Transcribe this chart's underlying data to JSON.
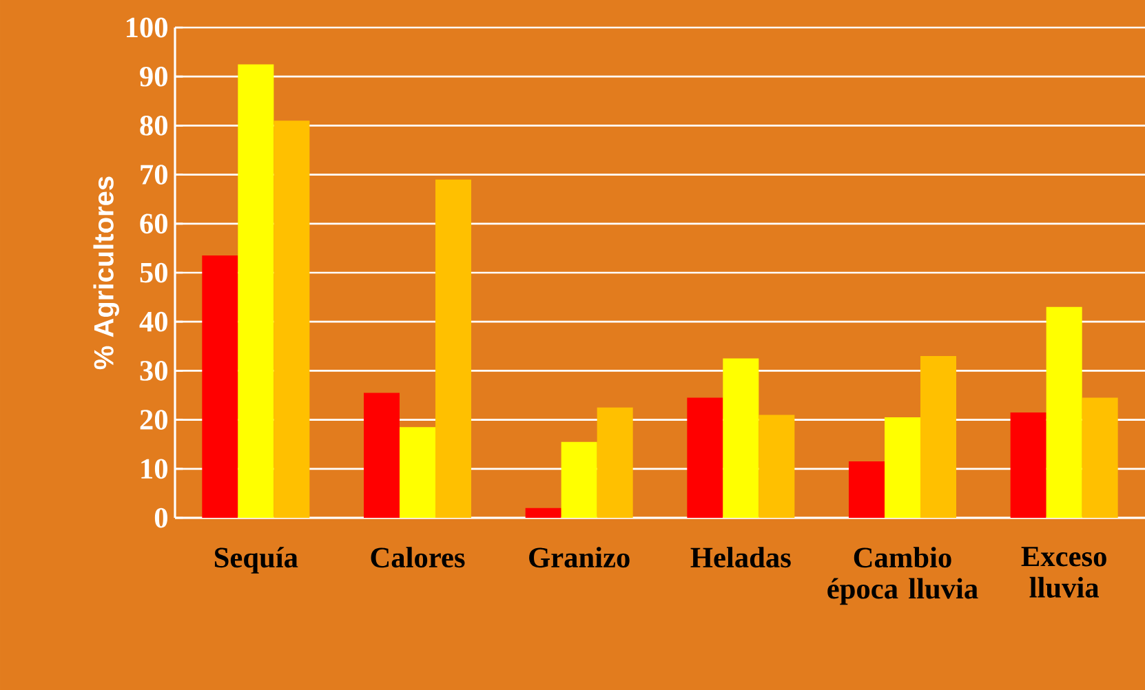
{
  "chart_data": {
    "type": "bar",
    "ylabel": "% Agricultores",
    "categories": [
      "Sequía",
      "Calores",
      "Granizo",
      "Heladas",
      "Cambio época lluvia",
      "Exceso lluvia"
    ],
    "series": [
      {
        "color": "#ff0000",
        "values": [
          53.5,
          25.5,
          2,
          24.5,
          11.5,
          21.5
        ]
      },
      {
        "color": "#ffff00",
        "values": [
          92.5,
          18.5,
          15.5,
          32.5,
          20.5,
          43
        ]
      },
      {
        "color": "#ffc000",
        "values": [
          81,
          69,
          22.5,
          21,
          33,
          24.5
        ]
      }
    ],
    "ylim": [
      0,
      100
    ],
    "yticks": [
      0,
      10,
      20,
      30,
      40,
      50,
      60,
      70,
      80,
      90,
      100
    ],
    "grid": "y"
  }
}
